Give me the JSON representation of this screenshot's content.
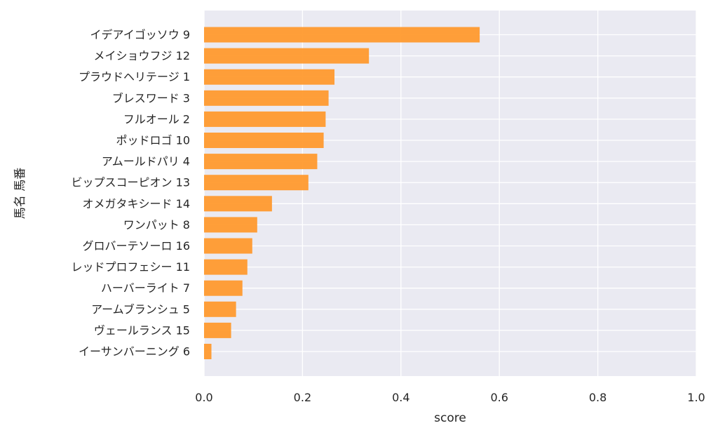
{
  "chart_data": {
    "type": "bar",
    "orientation": "horizontal",
    "categories": [
      "イデアイゴッソウ 9",
      "メイショウフジ 12",
      "プラウドヘリテージ 1",
      "ブレスワード 3",
      "フルオール 2",
      "ポッドロゴ 10",
      "アムールドパリ 4",
      "ビップスコーピオン 13",
      "オメガタキシード 14",
      "ワンパット 8",
      "グロバーテソーロ 16",
      "レッドプロフェシー 11",
      "ハーバーライト 7",
      "アームブランシュ 5",
      "ヴェールランス 15",
      "イーサンバーニング 6"
    ],
    "values": [
      0.56,
      0.335,
      0.265,
      0.253,
      0.247,
      0.243,
      0.23,
      0.212,
      0.138,
      0.108,
      0.098,
      0.088,
      0.078,
      0.065,
      0.055,
      0.015
    ],
    "xlabel": "score",
    "ylabel": "馬名 馬番",
    "xlim": [
      0,
      1.0
    ],
    "xticks": [
      "0.0",
      "0.2",
      "0.4",
      "0.6",
      "0.8",
      "1.0"
    ],
    "grid": true,
    "colors": {
      "bar": "#ff9a2e",
      "plot_background": "#eaeaf2",
      "grid": "#ffffff",
      "text": "#262626"
    }
  }
}
